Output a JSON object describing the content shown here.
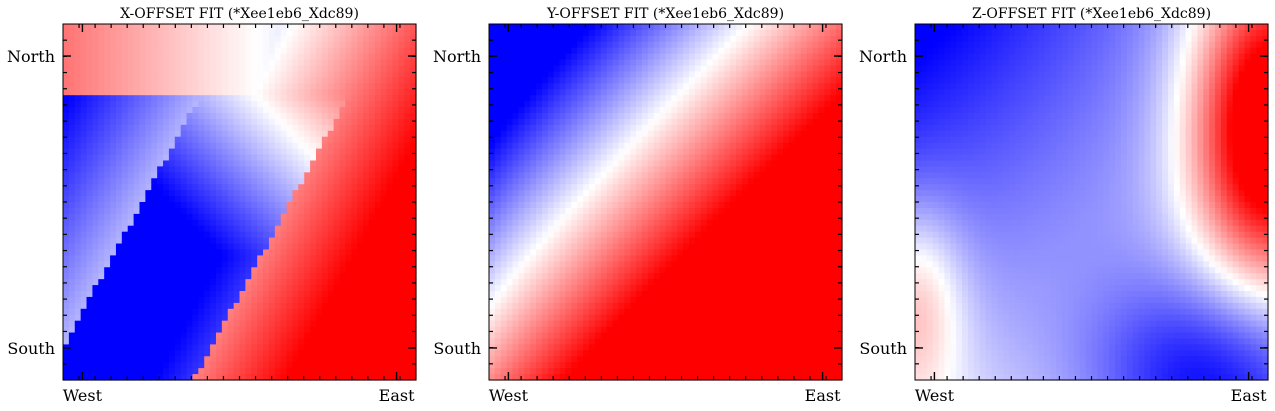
{
  "chart_data": [
    {
      "type": "heatmap",
      "title": "X-OFFSET FIT (*Xee1eb6_Xdc89)",
      "xlabel": "",
      "ylabel": "",
      "x_tick_labels": [
        "West",
        "East"
      ],
      "y_tick_labels": [
        "North",
        "South"
      ],
      "colormap": "bwr",
      "grid": false,
      "legend": "none",
      "field": "x_offset"
    },
    {
      "type": "heatmap",
      "title": "Y-OFFSET FIT (*Xee1eb6_Xdc89)",
      "xlabel": "",
      "ylabel": "",
      "x_tick_labels": [
        "West",
        "East"
      ],
      "y_tick_labels": [
        "North",
        "South"
      ],
      "colormap": "bwr",
      "grid": false,
      "legend": "none",
      "field": "y_offset"
    },
    {
      "type": "heatmap",
      "title": "Z-OFFSET FIT (*Xee1eb6_Xdc89)",
      "xlabel": "",
      "ylabel": "",
      "x_tick_labels": [
        "West",
        "East"
      ],
      "y_tick_labels": [
        "North",
        "South"
      ],
      "colormap": "bwr",
      "grid": false,
      "legend": "none",
      "field": "z_offset"
    }
  ],
  "colors": {
    "low": "#0000ff",
    "mid": "#ffffff",
    "high": "#ff0000"
  }
}
